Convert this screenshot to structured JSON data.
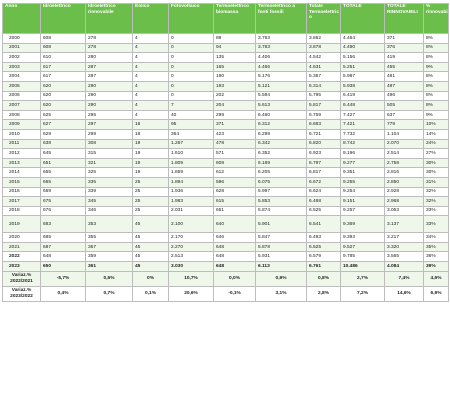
{
  "headers": [
    "Anno",
    "Idroelettrico",
    "Idroelettrico rinnovabile",
    "Eolico",
    "Fotovoltaico",
    "Termoelettrico biomassa",
    "Termoelettrico a fonti fossili",
    "Totale Termoelettric o",
    "TOTALE",
    "TOTALE RINNOVABILI",
    "% rinnovabili"
  ],
  "rows": [
    {
      "anno": "2000",
      "idro": "608",
      "idro_r": "278",
      "eolico": "4",
      "foto": "0",
      "bio": "89",
      "fossili": "3.763",
      "tot_term": "3.852",
      "totale": "4.464",
      "rinn": "371",
      "pct": "8%"
    },
    {
      "anno": "2001",
      "idro": "608",
      "idro_r": "278",
      "eolico": "4",
      "foto": "0",
      "bio": "94",
      "fossili": "3.783",
      "tot_term": "3.878",
      "totale": "4.490",
      "rinn": "376",
      "pct": "8%"
    },
    {
      "anno": "2002",
      "idro": "610",
      "idro_r": "280",
      "eolico": "4",
      "foto": "0",
      "bio": "135",
      "fossili": "4.406",
      "tot_term": "4.542",
      "totale": "5.156",
      "rinn": "419",
      "pct": "8%"
    },
    {
      "anno": "2003",
      "idro": "617",
      "idro_r": "287",
      "eolico": "4",
      "foto": "0",
      "bio": "165",
      "fossili": "4.466",
      "tot_term": "4.631",
      "totale": "5.251",
      "rinn": "455",
      "pct": "9%"
    },
    {
      "anno": "2004",
      "idro": "617",
      "idro_r": "287",
      "eolico": "4",
      "foto": "0",
      "bio": "190",
      "fossili": "5.176",
      "tot_term": "5.367",
      "totale": "5.987",
      "rinn": "481",
      "pct": "8%"
    },
    {
      "anno": "2005",
      "idro": "620",
      "idro_r": "290",
      "eolico": "4",
      "foto": "0",
      "bio": "193",
      "fossili": "5.121",
      "tot_term": "5.314",
      "totale": "5.938",
      "rinn": "487",
      "pct": "8%"
    },
    {
      "anno": "2006",
      "idro": "620",
      "idro_r": "290",
      "eolico": "4",
      "foto": "0",
      "bio": "202",
      "fossili": "5.594",
      "tot_term": "5.795",
      "totale": "6.419",
      "rinn": "496",
      "pct": "8%"
    },
    {
      "anno": "2007",
      "idro": "620",
      "idro_r": "290",
      "eolico": "4",
      "foto": "7",
      "bio": "204",
      "fossili": "5.613",
      "tot_term": "5.817",
      "totale": "6.448",
      "rinn": "505",
      "pct": "8%"
    },
    {
      "anno": "2008",
      "idro": "625",
      "idro_r": "295",
      "eolico": "4",
      "foto": "40",
      "bio": "299",
      "fossili": "6.460",
      "tot_term": "6.759",
      "totale": "7.427",
      "rinn": "637",
      "pct": "9%"
    },
    {
      "anno": "2009",
      "idro": "627",
      "idro_r": "297",
      "eolico": "16",
      "foto": "95",
      "bio": "371",
      "fossili": "6.312",
      "tot_term": "6.683",
      "totale": "7.421",
      "rinn": "779",
      "pct": "10%"
    },
    {
      "anno": "2010",
      "idro": "629",
      "idro_r": "299",
      "eolico": "18",
      "foto": "364",
      "bio": "423",
      "fossili": "6.298",
      "tot_term": "6.721",
      "totale": "7.732",
      "rinn": "1.104",
      "pct": "14%"
    },
    {
      "anno": "2011",
      "idro": "638",
      "idro_r": "308",
      "eolico": "19",
      "foto": "1.267",
      "bio": "478",
      "fossili": "6.342",
      "tot_term": "6.820",
      "totale": "8.742",
      "rinn": "2.070",
      "pct": "24%"
    },
    {
      "anno": "2012",
      "idro": "645",
      "idro_r": "315",
      "eolico": "19",
      "foto": "1.610",
      "bio": "571",
      "fossili": "6.352",
      "tot_term": "6.923",
      "totale": "9.196",
      "rinn": "2.514",
      "pct": "27%"
    },
    {
      "anno": "2013",
      "idro": "651",
      "idro_r": "321",
      "eolico": "19",
      "foto": "1.809",
      "bio": "608",
      "fossili": "6.189",
      "tot_term": "6.797",
      "totale": "9.277",
      "rinn": "2.758",
      "pct": "30%"
    },
    {
      "anno": "2014",
      "idro": "655",
      "idro_r": "325",
      "eolico": "19",
      "foto": "1.859",
      "bio": "612",
      "fossili": "6.205",
      "tot_term": "6.817",
      "totale": "9.351",
      "rinn": "2.816",
      "pct": "30%"
    },
    {
      "anno": "2015",
      "idro": "665",
      "idro_r": "335",
      "eolico": "25",
      "foto": "1.894",
      "bio": "596",
      "fossili": "6.075",
      "tot_term": "6.672",
      "totale": "9.255",
      "rinn": "2.850",
      "pct": "31%"
    },
    {
      "anno": "2016",
      "idro": "669",
      "idro_r": "339",
      "eolico": "25",
      "foto": "1.936",
      "bio": "628",
      "fossili": "5.997",
      "tot_term": "6.624",
      "totale": "9.254",
      "rinn": "2.928",
      "pct": "32%"
    },
    {
      "anno": "2017",
      "idro": "675",
      "idro_r": "345",
      "eolico": "25",
      "foto": "1.983",
      "bio": "615",
      "fossili": "5.853",
      "tot_term": "6.468",
      "totale": "9.151",
      "rinn": "2.968",
      "pct": "32%"
    },
    {
      "anno": "2018",
      "idro": "676",
      "idro_r": "346",
      "eolico": "25",
      "foto": "2.031",
      "bio": "651",
      "fossili": "5.874",
      "tot_term": "6.525",
      "totale": "9.257",
      "rinn": "3.053",
      "pct": "33%"
    },
    {
      "anno": "2019",
      "idro": "683",
      "idro_r": "353",
      "eolico": "45",
      "foto": "2.100",
      "bio": "640",
      "fossili": "5.901",
      "tot_term": "6.541",
      "totale": "9.369",
      "rinn": "3.137",
      "pct": "33%",
      "tall": true
    },
    {
      "anno": "2020",
      "idro": "685",
      "idro_r": "355",
      "eolico": "45",
      "foto": "2.170",
      "bio": "646",
      "fossili": "5.847",
      "tot_term": "6.493",
      "totale": "9.393",
      "rinn": "3.217",
      "pct": "34%"
    },
    {
      "anno": "2021",
      "idro": "687",
      "idro_r": "357",
      "eolico": "45",
      "foto": "2.270",
      "bio": "648",
      "fossili": "5.878",
      "tot_term": "6.525",
      "totale": "9.527",
      "rinn": "3.320",
      "pct": "35%"
    },
    {
      "anno": "2022",
      "idro": "648",
      "idro_r": "359",
      "eolico": "45",
      "foto": "2.513",
      "bio": "648",
      "fossili": "5.931",
      "tot_term": "6.579",
      "totale": "9.785",
      "rinn": "3.565",
      "pct": "36%",
      "bold_year": true
    },
    {
      "anno": "2023",
      "idro": "650",
      "idro_r": "361",
      "eolico": "45",
      "foto": "3.030",
      "bio": "648",
      "fossili": "6.113",
      "tot_term": "6.761",
      "totale": "10.486",
      "rinn": "4.084",
      "pct": "39%",
      "total": true
    }
  ],
  "variations": [
    {
      "label": "Variaz.% 2022/2021",
      "idro": "-5,7%",
      "idro_r": "0,5%",
      "eolico": "0%",
      "foto": "10,7%",
      "bio": "0,0%",
      "fossili": "0,9%",
      "tot_term": "0,8%",
      "totale": "2,7%",
      "rinn": "7,4%",
      "pct": "4,5%"
    },
    {
      "label": "Variaz.% 2023/2022",
      "idro": "0,4%",
      "idro_r": "0,7%",
      "eolico": "0,1%",
      "foto": "20,6%",
      "bio": "-0,1%",
      "fossili": "3,1%",
      "tot_term": "2,8%",
      "totale": "7,2%",
      "rinn": "14,6%",
      "pct": "6,9%"
    }
  ]
}
